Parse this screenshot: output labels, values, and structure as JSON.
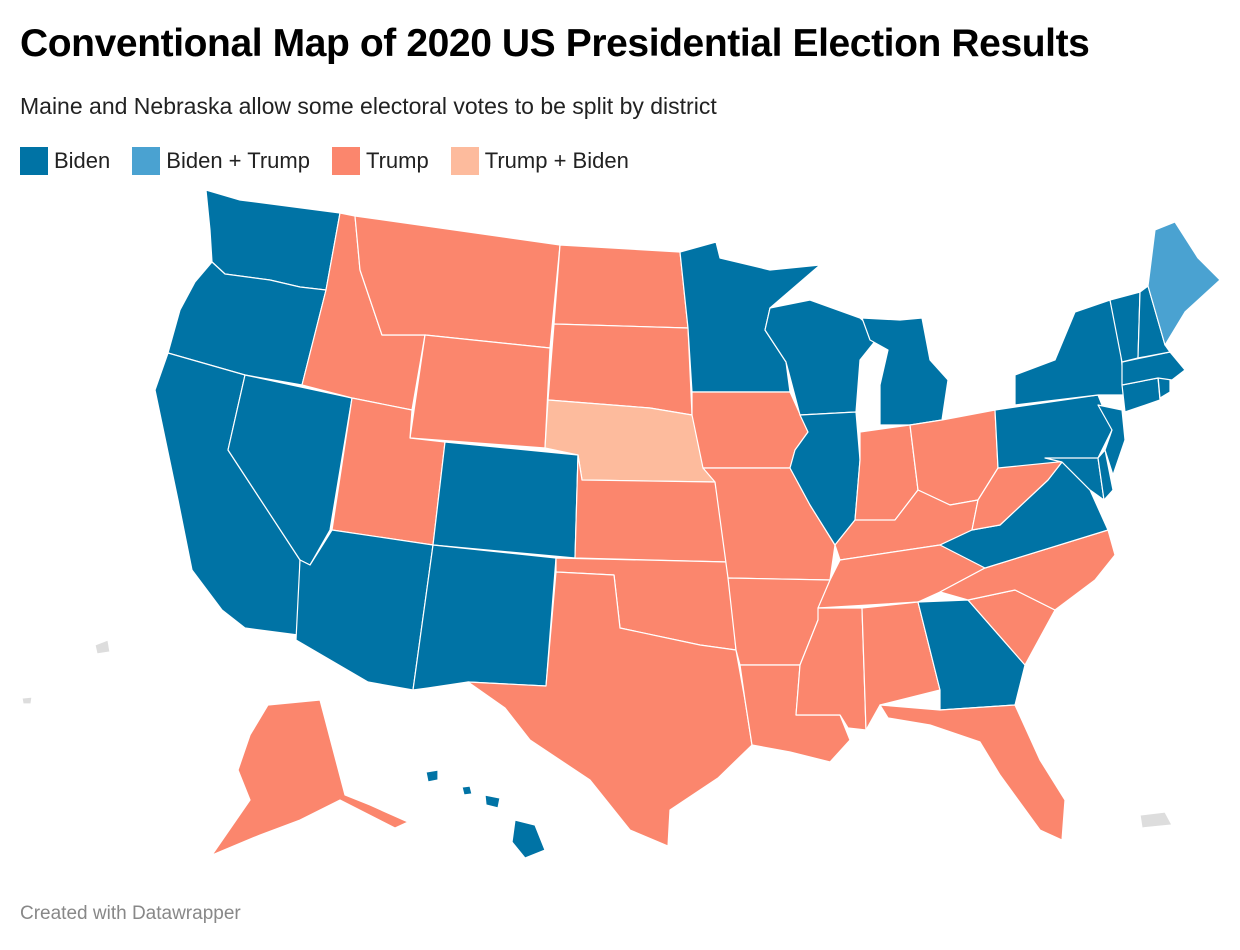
{
  "title": "Conventional Map of 2020 US Presidential Election Results",
  "subtitle": "Maine and Nebraska allow some electoral votes to be split by district",
  "legend": [
    {
      "label": "Biden",
      "color": "#0073a5"
    },
    {
      "label": "Biden + Trump",
      "color": "#4aa2d1"
    },
    {
      "label": "Trump",
      "color": "#fb866d"
    },
    {
      "label": "Trump + Biden",
      "color": "#fdbb9d"
    }
  ],
  "colors": {
    "biden": "#0073a5",
    "biden_trump": "#4aa2d1",
    "trump": "#fb866d",
    "trump_biden": "#fdbb9d",
    "no_data": "#dddddd"
  },
  "map_data": {
    "type": "choropleth",
    "regions": {
      "WA": "Biden",
      "OR": "Biden",
      "CA": "Biden",
      "NV": "Biden",
      "AZ": "Biden",
      "CO": "Biden",
      "NM": "Biden",
      "MN": "Biden",
      "WI": "Biden",
      "MI": "Biden",
      "IL": "Biden",
      "GA": "Biden",
      "VA": "Biden",
      "PA": "Biden",
      "NY": "Biden",
      "VT": "Biden",
      "NH": "Biden",
      "MA": "Biden",
      "CT": "Biden",
      "RI": "Biden",
      "NJ": "Biden",
      "DE": "Biden",
      "MD": "Biden",
      "HI": "Biden",
      "ME": "Biden + Trump",
      "NE": "Trump + Biden",
      "ID": "Trump",
      "MT": "Trump",
      "WY": "Trump",
      "UT": "Trump",
      "ND": "Trump",
      "SD": "Trump",
      "KS": "Trump",
      "OK": "Trump",
      "TX": "Trump",
      "IA": "Trump",
      "MO": "Trump",
      "AR": "Trump",
      "LA": "Trump",
      "MS": "Trump",
      "AL": "Trump",
      "TN": "Trump",
      "KY": "Trump",
      "IN": "Trump",
      "OH": "Trump",
      "WV": "Trump",
      "NC": "Trump",
      "SC": "Trump",
      "FL": "Trump",
      "AK": "Trump"
    }
  },
  "footer": "Created with Datawrapper"
}
